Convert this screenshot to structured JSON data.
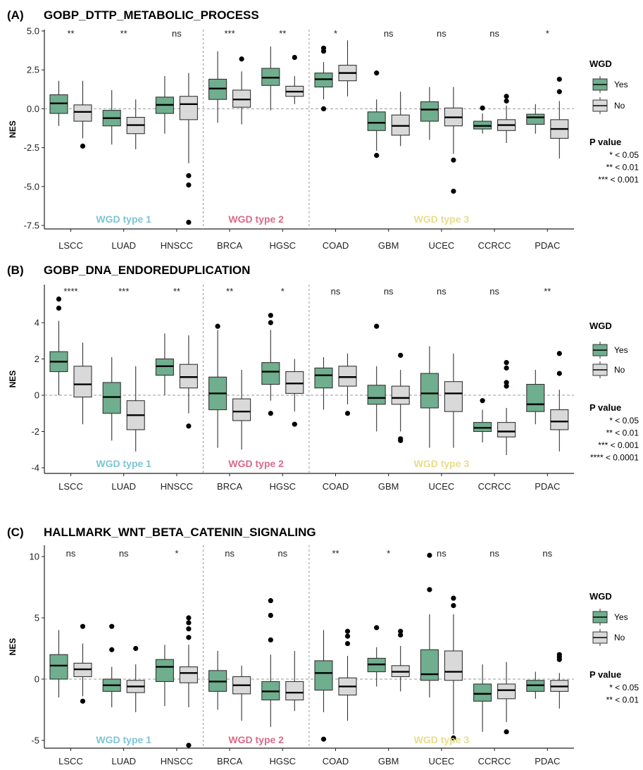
{
  "chart_data": [
    {
      "panel_label": "(A)",
      "title": "GOBP_DTTP_METABOLIC_PROCESS",
      "type": "box",
      "ylabel": "NES",
      "ylim": [
        -8.1,
        5.0
      ],
      "yticks": [
        "5.0",
        "2.5",
        "0.0",
        "-2.5",
        "-5.0",
        "-7.5"
      ],
      "categories": [
        "LSCC",
        "LUAD",
        "HNSCC",
        "BRCA",
        "HGSC",
        "COAD",
        "GBM",
        "UCEC",
        "CCRCC",
        "PDAC"
      ],
      "significance": [
        "**",
        "**",
        "ns",
        "***",
        "**",
        "*",
        "ns",
        "ns",
        "ns",
        "*"
      ],
      "groups": [
        {
          "label": "WGD type 1",
          "color": "#7cc5d4",
          "from": 0,
          "to": 2
        },
        {
          "label": "WGD type 2",
          "color": "#d96a88",
          "from": 3,
          "to": 4
        },
        {
          "label": "WGD type 3",
          "color": "#e8dc8a",
          "from": 5,
          "to": 9
        }
      ],
      "series": [
        {
          "name": "Yes",
          "color": "#6fae8e",
          "boxes": [
            {
              "min": -1.1,
              "q1": -0.3,
              "median": 0.35,
              "q3": 0.9,
              "max": 1.8,
              "outliers": []
            },
            {
              "min": -2.3,
              "q1": -1.1,
              "median": -0.6,
              "q3": -0.1,
              "max": 1.2,
              "outliers": []
            },
            {
              "min": -1.6,
              "q1": -0.3,
              "median": 0.25,
              "q3": 0.75,
              "max": 2.1,
              "outliers": []
            },
            {
              "min": -0.9,
              "q1": 0.6,
              "median": 1.3,
              "q3": 1.9,
              "max": 3.7,
              "outliers": []
            },
            {
              "min": -0.1,
              "q1": 1.5,
              "median": 2.0,
              "q3": 2.6,
              "max": 4.0,
              "outliers": []
            },
            {
              "min": 0.6,
              "q1": 1.4,
              "median": 1.9,
              "q3": 2.3,
              "max": 3.0,
              "outliers": [
                3.9,
                3.7,
                0.0
              ]
            },
            {
              "min": -2.7,
              "q1": -1.4,
              "median": -0.9,
              "q3": -0.2,
              "max": 0.6,
              "outliers": [
                2.3,
                -3.0
              ]
            },
            {
              "min": -2.0,
              "q1": -0.8,
              "median": -0.05,
              "q3": 0.45,
              "max": 1.4,
              "outliers": []
            },
            {
              "min": -1.6,
              "q1": -1.3,
              "median": -1.1,
              "q3": -0.8,
              "max": -0.3,
              "outliers": [
                0.05
              ]
            },
            {
              "min": -1.6,
              "q1": -1.0,
              "median": -0.55,
              "q3": -0.35,
              "max": 0.3,
              "outliers": []
            }
          ]
        },
        {
          "name": "No",
          "color": "#d9d9d9",
          "boxes": [
            {
              "min": -1.9,
              "q1": -0.8,
              "median": -0.2,
              "q3": 0.25,
              "max": 1.8,
              "outliers": [
                -2.4
              ]
            },
            {
              "min": -2.6,
              "q1": -1.6,
              "median": -1.05,
              "q3": -0.55,
              "max": 0.6,
              "outliers": []
            },
            {
              "min": -3.5,
              "q1": -0.7,
              "median": 0.3,
              "q3": 0.8,
              "max": 2.3,
              "outliers": [
                -4.3,
                -4.9,
                -7.3
              ]
            },
            {
              "min": -1.0,
              "q1": 0.1,
              "median": 0.6,
              "q3": 1.2,
              "max": 2.4,
              "outliers": [
                3.2
              ]
            },
            {
              "min": 0.3,
              "q1": 0.8,
              "median": 1.1,
              "q3": 1.45,
              "max": 2.1,
              "outliers": [
                3.3
              ]
            },
            {
              "min": 0.8,
              "q1": 1.8,
              "median": 2.3,
              "q3": 2.8,
              "max": 4.4,
              "outliers": []
            },
            {
              "min": -2.4,
              "q1": -1.7,
              "median": -1.1,
              "q3": -0.4,
              "max": 1.1,
              "outliers": []
            },
            {
              "min": -2.9,
              "q1": -1.1,
              "median": -0.55,
              "q3": 0.05,
              "max": 1.4,
              "outliers": [
                -3.3,
                -5.3
              ]
            },
            {
              "min": -2.2,
              "q1": -1.4,
              "median": -1.05,
              "q3": -0.7,
              "max": 0.2,
              "outliers": [
                0.5,
                0.8
              ]
            },
            {
              "min": -3.2,
              "q1": -1.9,
              "median": -1.3,
              "q3": -0.7,
              "max": 0.5,
              "outliers": [
                1.1,
                1.9
              ]
            }
          ]
        }
      ],
      "legend": {
        "title": "WGD",
        "items": [
          "Yes",
          "No"
        ],
        "pvalue_title": "P value",
        "pvalue_items": [
          "* < 0.05",
          "** < 0.01",
          "*** < 0.001"
        ]
      }
    },
    {
      "panel_label": "(B)",
      "title": "GOBP_DNA_ENDOREDUPLICATION",
      "type": "box",
      "ylabel": "NES",
      "ylim": [
        -4.2,
        5.5
      ],
      "yticks": [
        "4",
        "2",
        "0",
        "-2",
        "-4"
      ],
      "categories": [
        "LSCC",
        "LUAD",
        "HNSCC",
        "BRCA",
        "HGSC",
        "COAD",
        "GBM",
        "UCEC",
        "CCRCC",
        "PDAC"
      ],
      "significance": [
        "****",
        "***",
        "**",
        "**",
        "*",
        "ns",
        "ns",
        "ns",
        "ns",
        "**"
      ],
      "groups": [
        {
          "label": "WGD type 1",
          "color": "#7cc5d4",
          "from": 0,
          "to": 2
        },
        {
          "label": "WGD type 2",
          "color": "#d96a88",
          "from": 3,
          "to": 4
        },
        {
          "label": "WGD type 3",
          "color": "#e8dc8a",
          "from": 5,
          "to": 9
        }
      ],
      "series": [
        {
          "name": "Yes",
          "color": "#6fae8e",
          "boxes": [
            {
              "min": 0.0,
              "q1": 1.3,
              "median": 1.85,
              "q3": 2.4,
              "max": 4.1,
              "outliers": [
                4.8,
                5.3
              ]
            },
            {
              "min": -2.5,
              "q1": -1.0,
              "median": -0.1,
              "q3": 0.7,
              "max": 2.1,
              "outliers": []
            },
            {
              "min": 0.0,
              "q1": 1.1,
              "median": 1.6,
              "q3": 2.0,
              "max": 3.4,
              "outliers": []
            },
            {
              "min": -2.9,
              "q1": -0.8,
              "median": 0.1,
              "q3": 1.0,
              "max": 3.6,
              "outliers": [
                3.8
              ]
            },
            {
              "min": -0.3,
              "q1": 0.6,
              "median": 1.3,
              "q3": 1.8,
              "max": 3.6,
              "outliers": [
                4.0,
                4.4,
                -1.0
              ]
            },
            {
              "min": -0.8,
              "q1": 0.4,
              "median": 1.1,
              "q3": 1.5,
              "max": 2.1,
              "outliers": []
            },
            {
              "min": -2.0,
              "q1": -0.5,
              "median": -0.15,
              "q3": 0.55,
              "max": 1.6,
              "outliers": [
                3.8
              ]
            },
            {
              "min": -2.9,
              "q1": -0.7,
              "median": 0.1,
              "q3": 1.2,
              "max": 2.7,
              "outliers": []
            },
            {
              "min": -2.6,
              "q1": -2.0,
              "median": -1.8,
              "q3": -1.5,
              "max": -0.8,
              "outliers": [
                -0.3
              ]
            },
            {
              "min": -1.6,
              "q1": -0.9,
              "median": -0.5,
              "q3": 0.6,
              "max": 1.4,
              "outliers": []
            }
          ]
        },
        {
          "name": "No",
          "color": "#d9d9d9",
          "boxes": [
            {
              "min": -1.6,
              "q1": -0.1,
              "median": 0.6,
              "q3": 1.6,
              "max": 2.9,
              "outliers": []
            },
            {
              "min": -3.1,
              "q1": -1.9,
              "median": -1.1,
              "q3": -0.3,
              "max": 1.6,
              "outliers": []
            },
            {
              "min": -1.0,
              "q1": 0.4,
              "median": 1.0,
              "q3": 1.7,
              "max": 3.3,
              "outliers": [
                -1.7
              ]
            },
            {
              "min": -3.0,
              "q1": -1.4,
              "median": -0.9,
              "q3": -0.2,
              "max": 1.4,
              "outliers": []
            },
            {
              "min": -0.9,
              "q1": 0.1,
              "median": 0.65,
              "q3": 1.3,
              "max": 2.0,
              "outliers": [
                -1.6
              ]
            },
            {
              "min": -0.5,
              "q1": 0.5,
              "median": 1.0,
              "q3": 1.6,
              "max": 2.3,
              "outliers": [
                -1.0
              ]
            },
            {
              "min": -2.0,
              "q1": -0.5,
              "median": -0.15,
              "q3": 0.5,
              "max": 1.4,
              "outliers": [
                2.2,
                -2.4,
                -2.5
              ]
            },
            {
              "min": -2.9,
              "q1": -0.9,
              "median": 0.1,
              "q3": 0.75,
              "max": 2.3,
              "outliers": []
            },
            {
              "min": -3.3,
              "q1": -2.3,
              "median": -2.0,
              "q3": -1.5,
              "max": -0.7,
              "outliers": [
                0.5,
                0.7,
                1.5,
                1.8
              ]
            },
            {
              "min": -3.1,
              "q1": -1.9,
              "median": -1.45,
              "q3": -0.8,
              "max": 0.3,
              "outliers": [
                1.2,
                2.3
              ]
            }
          ]
        }
      ],
      "legend": {
        "title": "WGD",
        "items": [
          "Yes",
          "No"
        ],
        "pvalue_title": "P value",
        "pvalue_items": [
          "* < 0.05",
          "** < 0.01",
          "*** < 0.001",
          "**** < 0.0001"
        ]
      }
    },
    {
      "panel_label": "(C)",
      "title": "HALLMARK_WNT_BETA_CATENIN_SIGNALING",
      "type": "box",
      "ylabel": "NES",
      "ylim": [
        -5.9,
        11.3
      ],
      "yticks": [
        "10",
        "5",
        "0",
        "-5"
      ],
      "categories": [
        "LSCC",
        "LUAD",
        "HNSCC",
        "BRCA",
        "HGSC",
        "COAD",
        "GBM",
        "UCEC",
        "CCRCC",
        "PDAC"
      ],
      "significance": [
        "ns",
        "ns",
        "*",
        "ns",
        "ns",
        "**",
        "*",
        "ns",
        "ns",
        "ns"
      ],
      "groups": [
        {
          "label": "WGD type 1",
          "color": "#7cc5d4",
          "from": 0,
          "to": 2
        },
        {
          "label": "WGD type 2",
          "color": "#d96a88",
          "from": 3,
          "to": 4
        },
        {
          "label": "WGD type 3",
          "color": "#e8dc8a",
          "from": 5,
          "to": 9
        }
      ],
      "series": [
        {
          "name": "Yes",
          "color": "#6fae8e",
          "boxes": [
            {
              "min": -1.5,
              "q1": 0.0,
              "median": 1.1,
              "q3": 2.0,
              "max": 4.0,
              "outliers": []
            },
            {
              "min": -2.3,
              "q1": -1.0,
              "median": -0.5,
              "q3": 0.0,
              "max": 1.0,
              "outliers": [
                2.4,
                4.3
              ]
            },
            {
              "min": -2.2,
              "q1": -0.2,
              "median": 1.0,
              "q3": 1.6,
              "max": 2.8,
              "outliers": []
            },
            {
              "min": -2.5,
              "q1": -1.0,
              "median": -0.2,
              "q3": 0.7,
              "max": 2.3,
              "outliers": []
            },
            {
              "min": -3.9,
              "q1": -1.7,
              "median": -1.0,
              "q3": -0.2,
              "max": 2.0,
              "outliers": [
                3.2,
                5.2,
                6.4
              ]
            },
            {
              "min": -2.7,
              "q1": -0.9,
              "median": 0.5,
              "q3": 1.5,
              "max": 4.0,
              "outliers": [
                -4.9
              ]
            },
            {
              "min": -0.6,
              "q1": 0.6,
              "median": 1.2,
              "q3": 1.7,
              "max": 2.6,
              "outliers": [
                4.2
              ]
            },
            {
              "min": -1.5,
              "q1": -0.1,
              "median": 0.4,
              "q3": 2.4,
              "max": 5.3,
              "outliers": [
                7.3,
                10.1
              ]
            },
            {
              "min": -4.3,
              "q1": -1.8,
              "median": -1.2,
              "q3": -0.4,
              "max": 1.2,
              "outliers": []
            },
            {
              "min": -1.6,
              "q1": -1.0,
              "median": -0.5,
              "q3": -0.1,
              "max": 0.6,
              "outliers": []
            }
          ]
        },
        {
          "name": "No",
          "color": "#d9d9d9",
          "boxes": [
            {
              "min": -1.4,
              "q1": 0.2,
              "median": 0.8,
              "q3": 1.3,
              "max": 2.9,
              "outliers": [
                4.3,
                -1.8
              ]
            },
            {
              "min": -2.7,
              "q1": -1.1,
              "median": -0.6,
              "q3": -0.1,
              "max": 1.2,
              "outliers": [
                2.5
              ]
            },
            {
              "min": -2.3,
              "q1": -0.3,
              "median": 0.5,
              "q3": 1.0,
              "max": 2.8,
              "outliers": [
                3.4,
                4.1,
                4.6,
                5.0,
                -5.4
              ]
            },
            {
              "min": -3.4,
              "q1": -1.2,
              "median": -0.5,
              "q3": 0.2,
              "max": 1.1,
              "outliers": []
            },
            {
              "min": -2.6,
              "q1": -1.7,
              "median": -1.1,
              "q3": -0.2,
              "max": 2.3,
              "outliers": []
            },
            {
              "min": -3.4,
              "q1": -1.3,
              "median": -0.6,
              "q3": 0.1,
              "max": 1.9,
              "outliers": [
                2.9,
                3.5,
                3.9
              ]
            },
            {
              "min": -1.0,
              "q1": 0.2,
              "median": 0.6,
              "q3": 1.1,
              "max": 2.7,
              "outliers": [
                3.6,
                3.9
              ]
            },
            {
              "min": -4.5,
              "q1": -0.1,
              "median": 0.6,
              "q3": 2.3,
              "max": 5.3,
              "outliers": [
                6.0,
                6.6,
                -4.8
              ]
            },
            {
              "min": -3.5,
              "q1": -1.6,
              "median": -0.9,
              "q3": -0.4,
              "max": 1.4,
              "outliers": [
                -4.3
              ]
            },
            {
              "min": -2.4,
              "q1": -1.0,
              "median": -0.6,
              "q3": -0.1,
              "max": 0.5,
              "outliers": [
                1.6,
                1.8,
                2.0
              ]
            }
          ]
        }
      ],
      "legend": {
        "title": "WGD",
        "items": [
          "Yes",
          "No"
        ],
        "pvalue_title": "P value",
        "pvalue_items": [
          "* < 0.05",
          "** < 0.01"
        ]
      }
    }
  ]
}
